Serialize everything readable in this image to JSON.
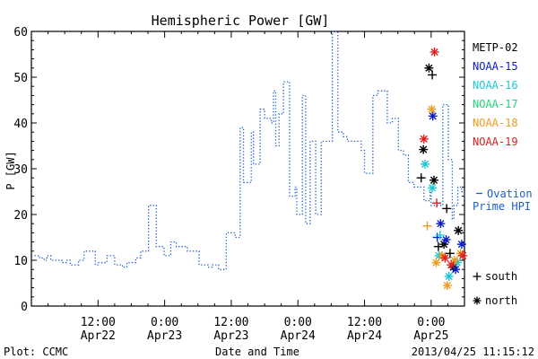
{
  "chart_data": {
    "type": "line",
    "title": "Hemispheric Power [GW]",
    "ylabel": "P [GW]",
    "xlabel": "Date and Time",
    "ylim": [
      0,
      60
    ],
    "xlim": [
      0,
      78
    ],
    "x_unit": "hours since Apr22 00:00",
    "yticks": [
      0,
      10,
      20,
      30,
      40,
      50,
      60
    ],
    "xticks": [
      {
        "pos": 12,
        "line1": "12:00",
        "line2": "Apr22"
      },
      {
        "pos": 24,
        "line1": "0:00",
        "line2": "Apr23"
      },
      {
        "pos": 36,
        "line1": "12:00",
        "line2": "Apr23"
      },
      {
        "pos": 48,
        "line1": "0:00",
        "line2": "Apr24"
      },
      {
        "pos": 60,
        "line1": "12:00",
        "line2": "Apr24"
      },
      {
        "pos": 72,
        "line1": "0:00",
        "line2": "Apr25"
      }
    ],
    "ovation": {
      "name": "Ovation Prime HPI",
      "label_line1": "Ovation",
      "label_line2": "Prime HPI",
      "color": "#1a5fd0",
      "x": [
        0,
        1.5,
        2.3,
        2.8,
        3.5,
        4.5,
        5.5,
        6.3,
        7.0,
        8.5,
        9.5,
        10.7,
        11.5,
        12.1,
        13.6,
        15.0,
        16.4,
        17.2,
        18.8,
        19.7,
        21.1,
        22.5,
        23.9,
        25.1,
        26.1,
        27.4,
        28.1,
        29.0,
        30.2,
        31.1,
        31.8,
        32.6,
        33.7,
        35.1,
        36.7,
        37.6,
        38.2,
        39.6,
        40.0,
        41.2,
        42.0,
        43.2,
        43.6,
        44.0,
        44.6,
        45.4,
        46.5,
        47.5,
        47.8,
        48.8,
        49.4,
        50.2,
        51.2,
        52.2,
        54.2,
        55.2,
        56.2,
        56.9,
        57.6,
        59.4,
        60.0,
        61.5,
        62.4,
        64.1,
        65.0,
        66.1,
        67.0,
        67.9,
        68.9,
        70.7,
        71.8,
        72.0,
        74.1,
        75.1,
        75.8,
        76.1,
        76.8,
        77.5,
        78.0
      ],
      "y": [
        11,
        10.5,
        10,
        11,
        10,
        10,
        9.5,
        10,
        9,
        10,
        12,
        12,
        9,
        9.5,
        11,
        9,
        8.5,
        9.5,
        10.5,
        12,
        22,
        13,
        11,
        14,
        13,
        13,
        12,
        12,
        9,
        9,
        8.5,
        9,
        8,
        16,
        15,
        39,
        27,
        38,
        31,
        43,
        41,
        40,
        47,
        35,
        42,
        49,
        24,
        26,
        20,
        46,
        18,
        36,
        20,
        36,
        61,
        38,
        37,
        36,
        36,
        34,
        29,
        46,
        47,
        40,
        41,
        34,
        33,
        27,
        26,
        23,
        25,
        22,
        44,
        32,
        19,
        22,
        26,
        25,
        23
      ]
    },
    "series": [
      {
        "name": "METP-02",
        "color": "#000000",
        "points": [
          {
            "x": 71.6,
            "y": 52,
            "s": "north"
          },
          {
            "x": 72.2,
            "y": 50.5,
            "s": "south"
          },
          {
            "x": 70.6,
            "y": 34.2,
            "s": "north"
          },
          {
            "x": 70.2,
            "y": 28,
            "s": "south"
          },
          {
            "x": 72.5,
            "y": 27.5,
            "s": "north"
          },
          {
            "x": 73.3,
            "y": 13,
            "s": "south"
          },
          {
            "x": 74.3,
            "y": 13.5,
            "s": "north"
          },
          {
            "x": 75.4,
            "y": 11.5,
            "s": "south"
          },
          {
            "x": 76.9,
            "y": 16.5,
            "s": "north"
          },
          {
            "x": 74.8,
            "y": 21.3,
            "s": "south"
          },
          {
            "x": 76.0,
            "y": 8.5,
            "s": "north"
          }
        ]
      },
      {
        "name": "NOAA-15",
        "color": "#0a1ec8",
        "points": [
          {
            "x": 72.3,
            "y": 41.5,
            "s": "north"
          },
          {
            "x": 73.7,
            "y": 18,
            "s": "north"
          },
          {
            "x": 74.7,
            "y": 14.5,
            "s": "north"
          },
          {
            "x": 76.4,
            "y": 8,
            "s": "north"
          },
          {
            "x": 77.5,
            "y": 13.5,
            "s": "north"
          },
          {
            "x": 73.1,
            "y": 15,
            "s": "south"
          }
        ]
      },
      {
        "name": "NOAA-16",
        "color": "#19c8d8",
        "points": [
          {
            "x": 70.9,
            "y": 31,
            "s": "north"
          },
          {
            "x": 72.2,
            "y": 25.8,
            "s": "north"
          },
          {
            "x": 73.4,
            "y": 11,
            "s": "north"
          },
          {
            "x": 75.2,
            "y": 6.5,
            "s": "north"
          },
          {
            "x": 76.7,
            "y": 9.5,
            "s": "north"
          },
          {
            "x": 73.6,
            "y": 15.5,
            "s": "south"
          }
        ]
      },
      {
        "name": "NOAA-17",
        "color": "#22d47a",
        "points": []
      },
      {
        "name": "NOAA-18",
        "color": "#f09a20",
        "points": [
          {
            "x": 72.1,
            "y": 43,
            "s": "north"
          },
          {
            "x": 71.3,
            "y": 17.5,
            "s": "south"
          },
          {
            "x": 72.9,
            "y": 9.5,
            "s": "north"
          },
          {
            "x": 74.0,
            "y": 11,
            "s": "north"
          },
          {
            "x": 74.9,
            "y": 4.5,
            "s": "north"
          },
          {
            "x": 76.2,
            "y": 10,
            "s": "north"
          },
          {
            "x": 77.3,
            "y": 11.5,
            "s": "north"
          }
        ]
      },
      {
        "name": "NOAA-19",
        "color": "#e02020",
        "points": [
          {
            "x": 72.6,
            "y": 55.5,
            "s": "north"
          },
          {
            "x": 70.7,
            "y": 36.5,
            "s": "north"
          },
          {
            "x": 73.0,
            "y": 22.5,
            "s": "south"
          },
          {
            "x": 74.5,
            "y": 10.5,
            "s": "north"
          },
          {
            "x": 75.6,
            "y": 9,
            "s": "north"
          },
          {
            "x": 77.7,
            "y": 11,
            "s": "north"
          }
        ]
      }
    ],
    "symbol_legend": [
      {
        "glyph": "+",
        "label": "south"
      },
      {
        "glyph": "*",
        "label": "north"
      }
    ]
  },
  "footer": {
    "left": "Plot: CCMC",
    "center": "Date and Time",
    "right": "2013/04/25 11:15:12"
  }
}
